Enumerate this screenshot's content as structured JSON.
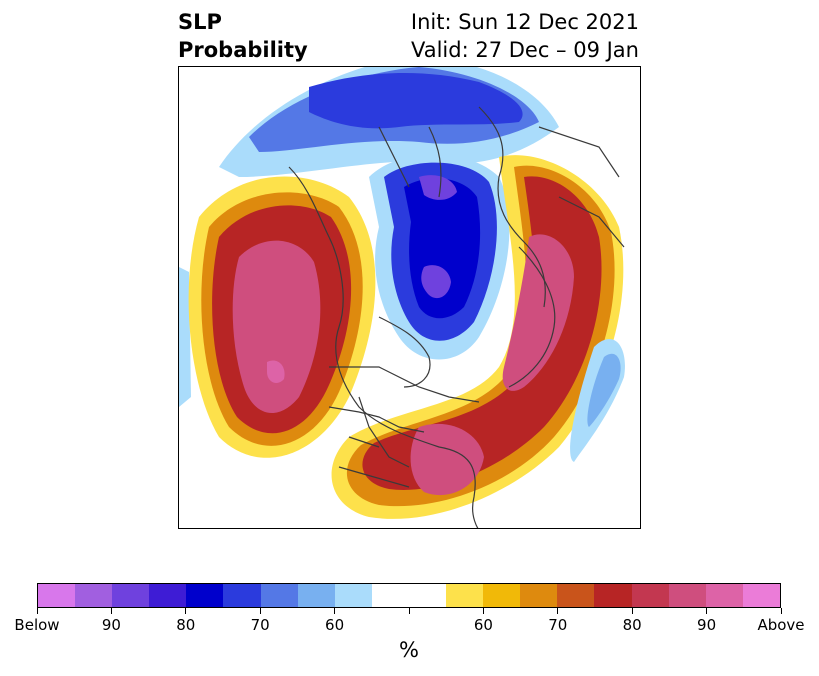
{
  "title": {
    "left_line1": "SLP",
    "left_line2": "Probability",
    "right_line1": "Init: Sun 12 Dec 2021",
    "right_line2": "Valid: 27 Dec – 09 Jan"
  },
  "map": {
    "projection": "north-polar-stereographic",
    "field": "SLP probability",
    "below_colors": [
      "#ff7fff"
    ],
    "colors": {
      "land_outline": "#3a3a3a",
      "background": "#ffffff"
    }
  },
  "colorbar": {
    "colors": [
      "#d877eb",
      "#a15fe0",
      "#6f41de",
      "#3e1cd5",
      "#0000cc",
      "#2b3bdd",
      "#5478e6",
      "#78b0f0",
      "#aadcfb",
      "#ffffff",
      "#ffffff",
      "#fde14b",
      "#f1b908",
      "#de8a0e",
      "#c9541b",
      "#b72525",
      "#c33750",
      "#cf4e7e",
      "#dd63a7",
      "#eb7cd8"
    ],
    "tick_labels": [
      "Below",
      "90",
      "80",
      "70",
      "60",
      "",
      "60",
      "70",
      "80",
      "90",
      "Above"
    ],
    "unit": "%"
  }
}
